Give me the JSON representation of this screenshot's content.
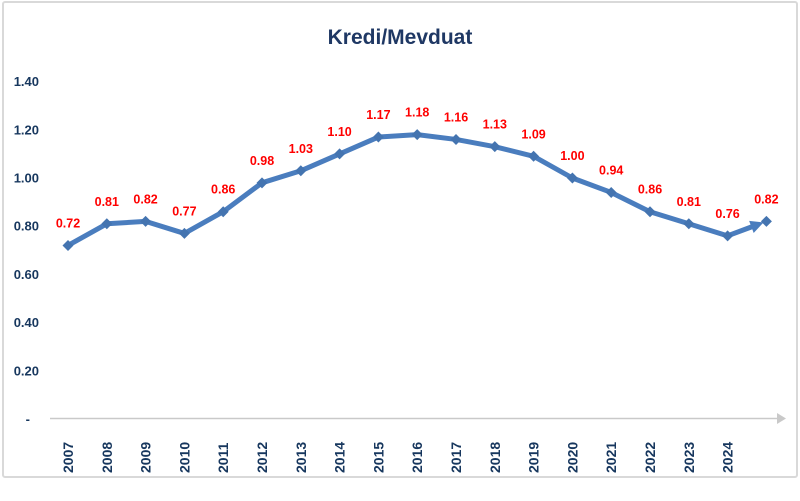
{
  "chart_data": {
    "type": "line",
    "title": "Kredi/Mevduat",
    "x_labels": [
      "2007",
      "2008",
      "2009",
      "2010",
      "2011",
      "2012",
      "2013",
      "2014",
      "2015",
      "2016",
      "2017",
      "2018",
      "2019",
      "2020",
      "2021",
      "2022",
      "2023",
      "2024"
    ],
    "series": [
      {
        "name": "Kredi/Mevduat",
        "values": [
          0.72,
          0.81,
          0.82,
          0.77,
          0.86,
          0.98,
          1.03,
          1.1,
          1.17,
          1.18,
          1.16,
          1.13,
          1.09,
          1.0,
          0.94,
          0.86,
          0.81,
          0.76,
          0.82
        ],
        "data_labels": [
          "0.72",
          "0.81",
          "0.82",
          "0.77",
          "0.86",
          "0.98",
          "1.03",
          "1.10",
          "1.17",
          "1.18",
          "1.16",
          "1.13",
          "1.09",
          "1.00",
          "0.94",
          "0.86",
          "0.81",
          "0.76",
          "0.82"
        ]
      }
    ],
    "y_axis": {
      "ticks": [
        {
          "label": "1.40",
          "value": 1.4
        },
        {
          "label": "1.20",
          "value": 1.2
        },
        {
          "label": "1.00",
          "value": 1.0
        },
        {
          "label": "0.80",
          "value": 0.8
        },
        {
          "label": "0.60",
          "value": 0.6
        },
        {
          "label": "0.40",
          "value": 0.4
        },
        {
          "label": "0.20",
          "value": 0.2
        },
        {
          "label": "-",
          "value": 0.0
        }
      ],
      "range": [
        0,
        1.4
      ]
    },
    "x_axis": {
      "arrow": true
    },
    "end_arrow_on_last_segment": true,
    "last_point_has_no_x_label": true,
    "grid": "off",
    "legend": "none",
    "colors": {
      "line": "#4a7dbe",
      "marker": "#4474b0",
      "data_label": "#ff0000",
      "axis_text": "#17375e",
      "title_text": "#1f3864",
      "axis_line": "#c9c9c9",
      "frame_border": "#d9d9d9"
    }
  }
}
